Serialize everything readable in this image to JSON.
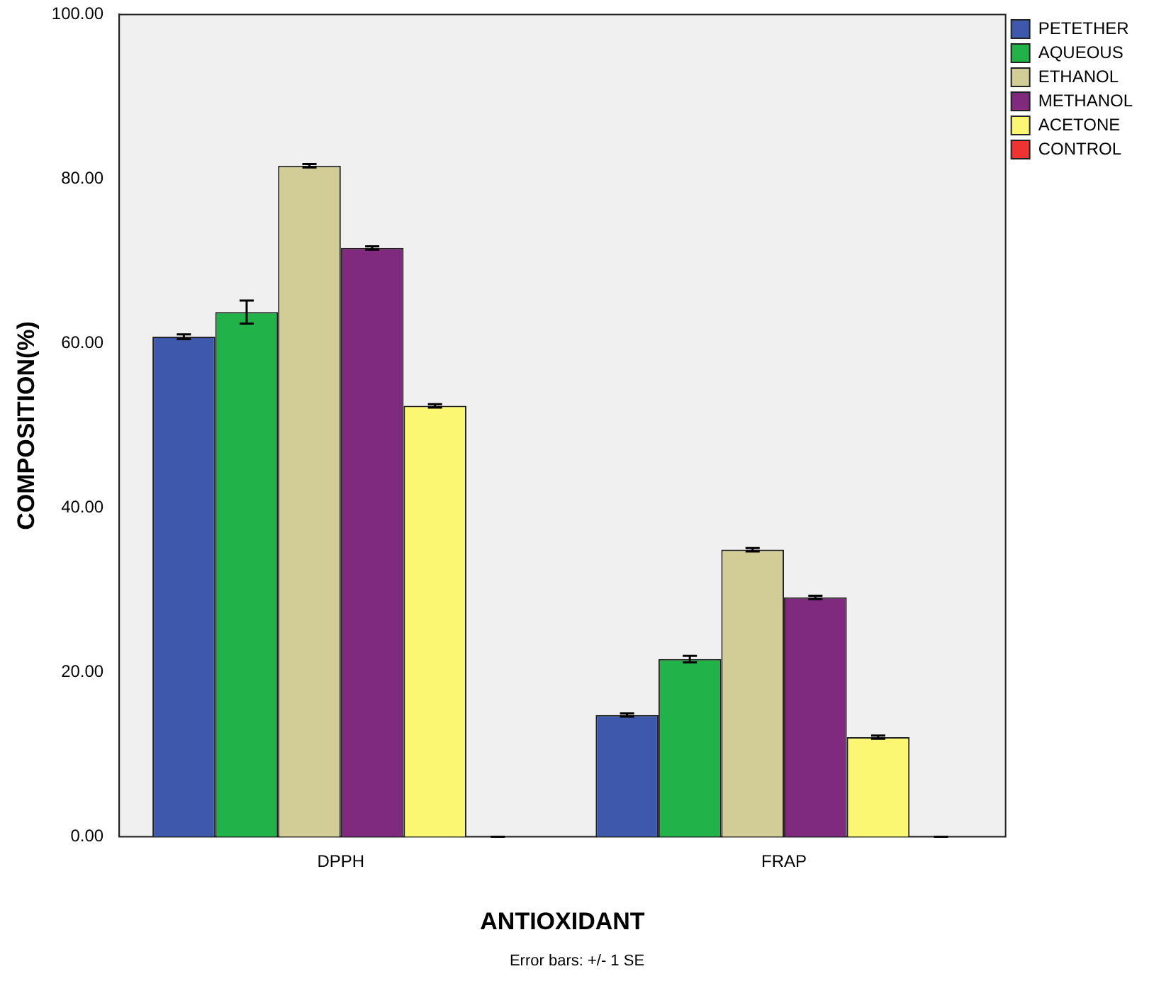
{
  "chart_data": {
    "type": "bar",
    "xlabel": "ANTIOXIDANT",
    "ylabel": "COMPOSITION(%)",
    "categories": [
      "DPPH",
      "FRAP"
    ],
    "series": [
      {
        "name": "PETETHER",
        "color": "#3e58ac",
        "values": [
          60.8,
          14.8
        ],
        "errors": [
          0.3,
          0.2
        ]
      },
      {
        "name": "AQUEOUS",
        "color": "#21b24a",
        "values": [
          63.8,
          21.6
        ],
        "errors": [
          1.4,
          0.4
        ]
      },
      {
        "name": "ETHANOL",
        "color": "#d2cc96",
        "values": [
          81.6,
          34.9
        ],
        "errors": [
          0.2,
          0.2
        ]
      },
      {
        "name": "METHANOL",
        "color": "#7f2a7f",
        "values": [
          71.6,
          29.1
        ],
        "errors": [
          0.2,
          0.2
        ]
      },
      {
        "name": "ACETONE",
        "color": "#fbf773",
        "values": [
          52.4,
          12.1
        ],
        "errors": [
          0.2,
          0.2
        ]
      },
      {
        "name": "CONTROL",
        "color": "#ee3333",
        "values": [
          0,
          0
        ],
        "errors": [
          0,
          0
        ]
      }
    ],
    "ylim": [
      0,
      100
    ],
    "yticks": [
      {
        "value": 0,
        "label": "0.00"
      },
      {
        "value": 20,
        "label": "20.00"
      },
      {
        "value": 40,
        "label": "40.00"
      },
      {
        "value": 60,
        "label": "60.00"
      },
      {
        "value": 80,
        "label": "80.00"
      },
      {
        "value": 100,
        "label": "100.00"
      }
    ],
    "grid": false,
    "legend": "top right",
    "annotations": [
      "Error bars: +/- 1 SE"
    ]
  }
}
